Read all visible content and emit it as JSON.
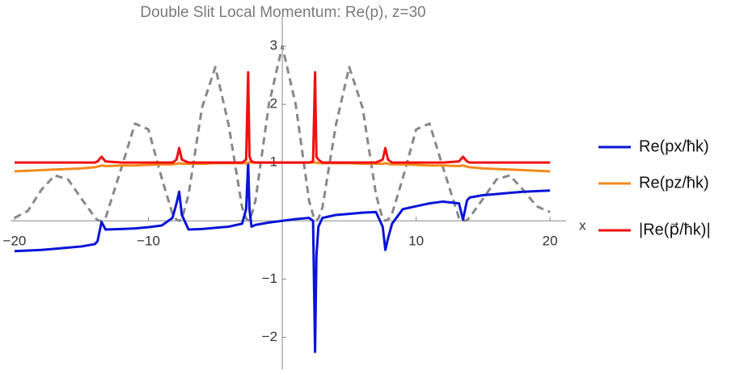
{
  "chart_data": {
    "type": "line",
    "title": "Double Slit Local Momentum: Re(p), z=30",
    "x_label": "x",
    "x": [
      -20,
      -19,
      -18,
      -17,
      -16,
      -15,
      -14,
      -13.8,
      -13.5,
      -13.2,
      -12,
      -11,
      -10,
      -9,
      -8.2,
      -7.9,
      -7.7,
      -7.5,
      -7,
      -6,
      -5,
      -4,
      -3,
      -2.7,
      -2.55,
      -2.45,
      -2.3,
      -2,
      -1,
      0,
      1,
      2,
      2.3,
      2.45,
      2.55,
      2.7,
      3,
      4,
      5,
      6,
      7,
      7.5,
      7.7,
      7.9,
      8.2,
      9,
      10,
      11,
      12,
      13.2,
      13.5,
      13.8,
      14,
      15,
      16,
      17,
      18,
      19,
      20
    ],
    "series": [
      {
        "color": "#888888",
        "dashed": true,
        "values": [
          0.05,
          0.17,
          0.53,
          0.78,
          0.71,
          0.38,
          0.06,
          0.01,
          0,
          0.05,
          0.92,
          1.67,
          1.57,
          0.73,
          0.12,
          0.02,
          0,
          0.03,
          0.45,
          1.94,
          2.64,
          1.64,
          0.23,
          0.04,
          0.01,
          0.01,
          0.1,
          0.35,
          2.0,
          3.0,
          2.0,
          0.35,
          0.1,
          0.01,
          0.01,
          0.04,
          0.23,
          1.64,
          2.64,
          1.94,
          0.45,
          0.03,
          0,
          0.02,
          0.12,
          0.73,
          1.57,
          1.67,
          0.92,
          0.05,
          0,
          0.01,
          0.06,
          0.38,
          0.71,
          0.78,
          0.53,
          0.25,
          0.15
        ]
      },
      {
        "name": "Re(px/ħk)",
        "color": "#0a14d8",
        "values": [
          -0.52,
          -0.51,
          -0.5,
          -0.48,
          -0.46,
          -0.44,
          -0.4,
          -0.35,
          -0.02,
          -0.15,
          -0.14,
          -0.13,
          -0.11,
          -0.08,
          0.05,
          0.3,
          0.5,
          0.1,
          -0.15,
          -0.14,
          -0.12,
          -0.1,
          -0.05,
          0.2,
          1.0,
          0.2,
          -0.1,
          -0.07,
          -0.03,
          0,
          0.03,
          0.05,
          0,
          -2.25,
          -0.6,
          -0.1,
          0.05,
          0.1,
          0.12,
          0.14,
          0.15,
          -0.1,
          -0.5,
          -0.3,
          -0.05,
          0.2,
          0.25,
          0.3,
          0.33,
          0.3,
          0.02,
          0.35,
          0.4,
          0.44,
          0.46,
          0.48,
          0.5,
          0.51,
          0.52
        ]
      },
      {
        "name": "Re(pz/ħk)",
        "color": "#f28a1c",
        "values": [
          0.85,
          0.86,
          0.87,
          0.88,
          0.89,
          0.9,
          0.92,
          0.93,
          0.95,
          0.94,
          0.95,
          0.95,
          0.96,
          0.97,
          0.97,
          0.98,
          0.99,
          0.98,
          0.98,
          0.98,
          0.99,
          0.99,
          0.99,
          0.99,
          1.0,
          1.0,
          1.0,
          1.0,
          1.0,
          1.0,
          1.0,
          1.0,
          1.0,
          1.0,
          1.0,
          0.99,
          0.99,
          0.99,
          0.99,
          0.98,
          0.98,
          0.98,
          0.99,
          0.98,
          0.97,
          0.97,
          0.96,
          0.95,
          0.95,
          0.94,
          0.95,
          0.93,
          0.92,
          0.9,
          0.89,
          0.88,
          0.87,
          0.86,
          0.85
        ]
      },
      {
        "name": "|Re(p⃗/ħk)|",
        "color": "#f01010",
        "values": [
          1,
          1,
          1,
          1,
          1,
          1,
          1,
          1.02,
          1.1,
          1.02,
          1,
          1,
          1,
          1,
          1,
          1.05,
          1.25,
          1.05,
          1,
          1,
          1,
          1,
          1,
          1.05,
          2.55,
          1.1,
          1.02,
          1,
          1,
          1,
          1,
          1,
          1.02,
          2.55,
          1.1,
          1.05,
          1,
          1,
          1,
          1,
          1,
          1.05,
          1.25,
          1.05,
          1,
          1,
          1,
          1,
          1,
          1.02,
          1.1,
          1.02,
          1,
          1,
          1,
          1,
          1,
          1,
          1
        ]
      }
    ],
    "xlim": [
      -20.3,
      21.2
    ],
    "ylim": [
      -2.55,
      3.5
    ],
    "xticks": [
      {
        "value": -20,
        "label": "−20"
      },
      {
        "value": -10,
        "label": "−10"
      },
      10,
      20
    ],
    "yticks": [
      {
        "value": -2,
        "label": "−2"
      },
      {
        "value": -1,
        "label": "−1"
      },
      1,
      2,
      3
    ],
    "legend": "right"
  }
}
